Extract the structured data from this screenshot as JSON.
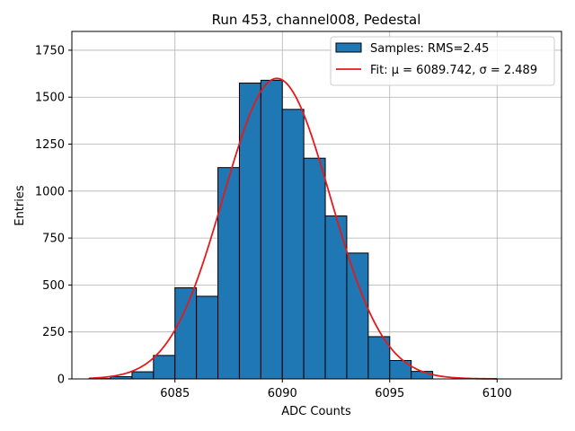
{
  "chart_data": {
    "type": "bar",
    "title": "Run 453, channel008, Pedestal",
    "xlabel": "ADC Counts",
    "ylabel": "Entries",
    "xlim": [
      6080.2,
      6103.0
    ],
    "ylim": [
      0,
      1850
    ],
    "grid": true,
    "xticks": [
      6085,
      6090,
      6095,
      6100
    ],
    "yticks": [
      0,
      250,
      500,
      750,
      1000,
      1250,
      1500,
      1750
    ],
    "bin_edges": [
      6081.0,
      6082.0,
      6083.0,
      6084.0,
      6085.0,
      6086.0,
      6087.0,
      6088.0,
      6089.0,
      6090.0,
      6091.0,
      6092.0,
      6093.0,
      6094.0,
      6095.0,
      6096.0,
      6097.0
    ],
    "counts": [
      2,
      12,
      38,
      125,
      485,
      440,
      1125,
      1575,
      1590,
      1435,
      1175,
      868,
      670,
      225,
      98,
      40,
      8
    ],
    "fit": {
      "mu": 6089.742,
      "sigma": 2.489,
      "amplitude": 1600,
      "range": [
        6081.0,
        6100.0
      ]
    },
    "colors": {
      "bar": "#1f77b4",
      "fit": "#e41a1c"
    },
    "legend": {
      "position": "top-right",
      "entries": [
        "Samples: RMS=2.45",
        "Fit: μ = 6089.742, σ = 2.489"
      ]
    }
  }
}
